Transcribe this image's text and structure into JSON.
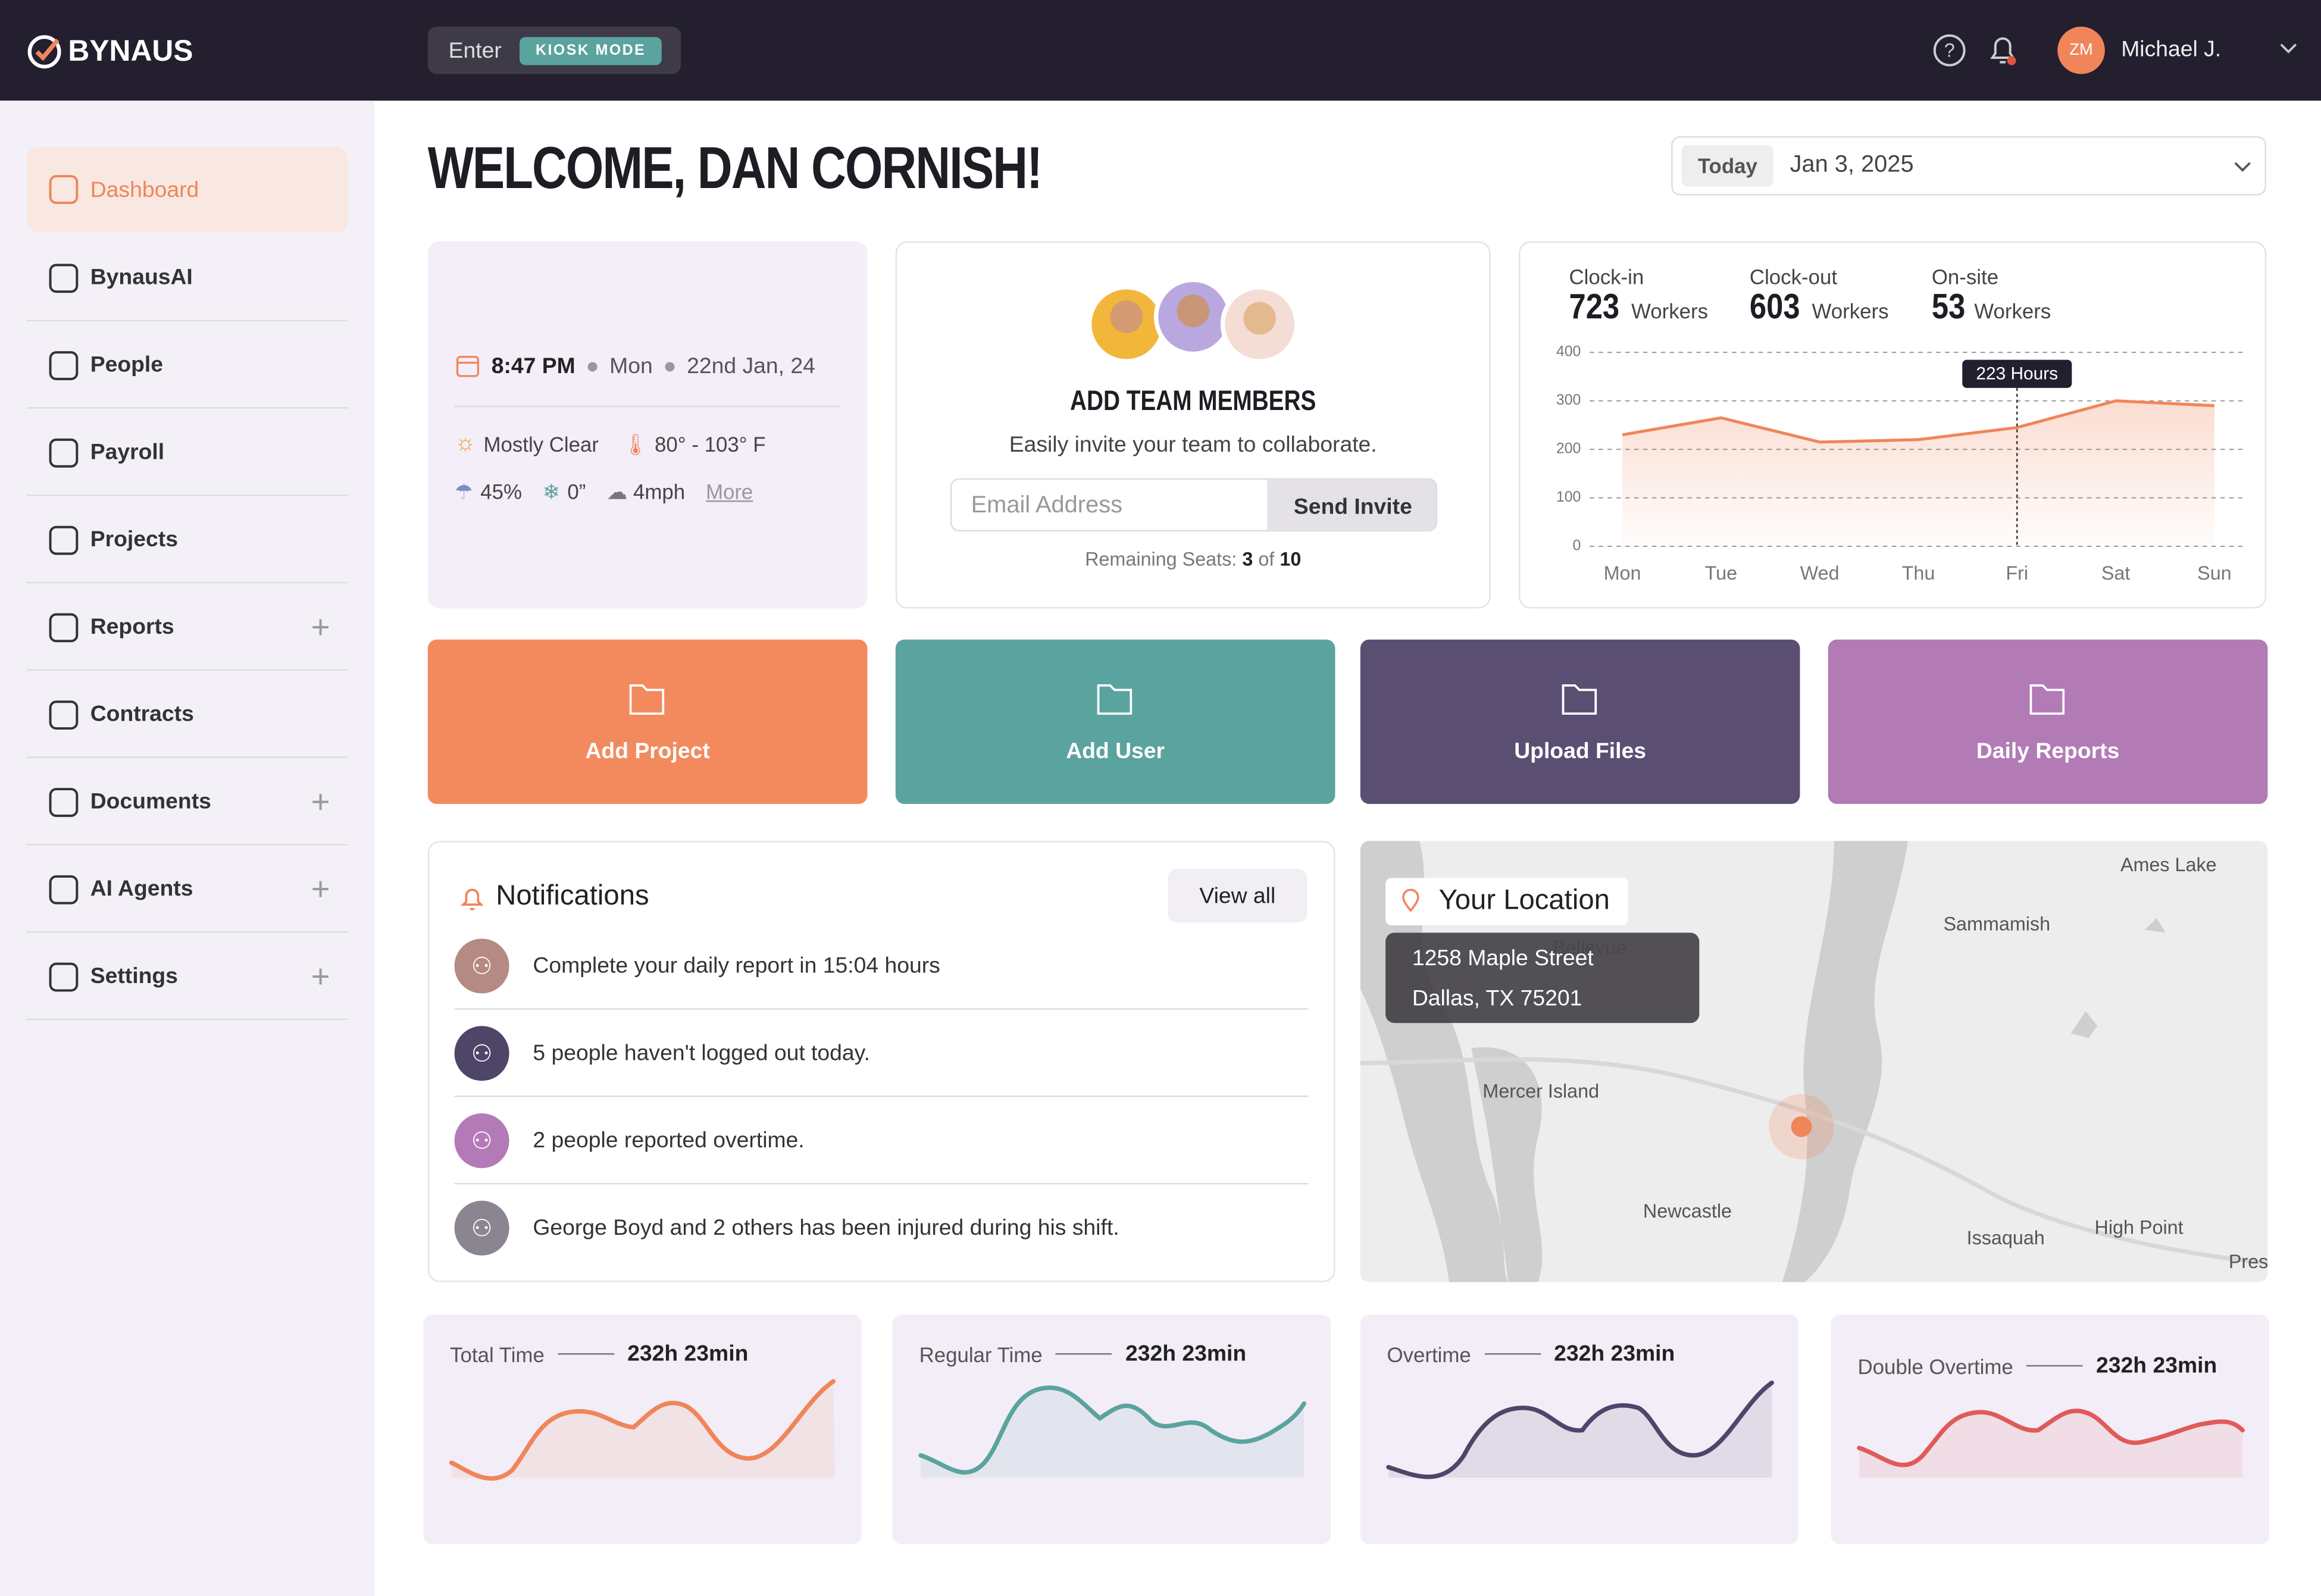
{
  "header": {
    "logo": "BYNAUS",
    "kiosk_enter": "Enter",
    "kiosk_mode": "KIOSK MODE",
    "avatar_initials": "ZM",
    "user_name": "Michael J."
  },
  "sidebar": {
    "items": [
      {
        "label": "Dashboard",
        "active": true,
        "expandable": false
      },
      {
        "label": "BynausAI",
        "active": false,
        "expandable": false
      },
      {
        "label": "People",
        "active": false,
        "expandable": false
      },
      {
        "label": "Payroll",
        "active": false,
        "expandable": false
      },
      {
        "label": "Projects",
        "active": false,
        "expandable": false
      },
      {
        "label": "Reports",
        "active": false,
        "expandable": true
      },
      {
        "label": "Contracts",
        "active": false,
        "expandable": false
      },
      {
        "label": "Documents",
        "active": false,
        "expandable": true
      },
      {
        "label": "AI Agents",
        "active": false,
        "expandable": true
      },
      {
        "label": "Settings",
        "active": false,
        "expandable": true
      }
    ]
  },
  "welcome": "WELCOME, DAN CORNISH!",
  "date_picker": {
    "preset": "Today",
    "date": "Jan 3, 2025"
  },
  "weather": {
    "time": "8:47 PM",
    "day": "Mon",
    "date": "22nd Jan, 24",
    "condition": "Mostly Clear",
    "temperature": "80° - 103° F",
    "humidity": "45%",
    "snow": "0”",
    "wind": "4mph",
    "more": "More"
  },
  "team": {
    "title": "ADD TEAM MEMBERS",
    "subtitle": "Easily invite your team to collaborate.",
    "email_placeholder": "Email Address",
    "button": "Send Invite",
    "seats_prefix": "Remaining Seats:",
    "seats_left": "3",
    "seats_of": "of",
    "seats_total": "10"
  },
  "stats": [
    {
      "label": "Clock-in",
      "value": "723",
      "unit": "Workers"
    },
    {
      "label": "Clock-out",
      "value": "603",
      "unit": "Workers"
    },
    {
      "label": "On-site",
      "value": "53",
      "unit": "Workers"
    }
  ],
  "chart_data": {
    "type": "line",
    "categories": [
      "Mon",
      "Tue",
      "Wed",
      "Thu",
      "Fri",
      "Sat",
      "Sun"
    ],
    "values": [
      230,
      265,
      215,
      220,
      245,
      300,
      290
    ],
    "color": "#f0855a",
    "ylim": [
      0,
      400
    ],
    "yticks": [
      0,
      100,
      200,
      300,
      400
    ],
    "grid": true,
    "annotation": "223 Hours"
  },
  "actions": [
    {
      "label": "Add Project",
      "color": "#f28a5e"
    },
    {
      "label": "Add User",
      "color": "#5ba39e"
    },
    {
      "label": "Upload Files",
      "color": "#5a4f73"
    },
    {
      "label": "Daily Reports",
      "color": "#b27bb5"
    }
  ],
  "notifications": {
    "title": "Notifications",
    "view_all": "View all",
    "items": [
      {
        "text": "Complete your daily report in 15:04 hours",
        "color": "#b58a84"
      },
      {
        "text": "5 people haven't logged out today.",
        "color": "#4e4568"
      },
      {
        "text": "2 people reported overtime.",
        "color": "#b47ab8"
      },
      {
        "text": "George Boyd and 2 others has been injured during his shift.",
        "color": "#8a8590"
      }
    ]
  },
  "location": {
    "title": "Your Location",
    "address_line1": "1258 Maple Street",
    "address_line2": "Dallas, TX 75201",
    "map_labels": [
      "Ames Lake",
      "Sammamish",
      "Bellevue",
      "Mercer Island",
      "Newcastle",
      "Issaquah",
      "High Point",
      "Pres"
    ]
  },
  "time_cards": [
    {
      "label": "Total Time",
      "value": "232h 23min",
      "color": "#f0855a"
    },
    {
      "label": "Regular Time",
      "value": "232h 23min",
      "color": "#5ba39e"
    },
    {
      "label": "Overtime",
      "value": "232h 23min",
      "color": "#4e4568"
    },
    {
      "label": "Double Overtime",
      "value": "232h 23min",
      "color": "#e05a5a"
    }
  ]
}
